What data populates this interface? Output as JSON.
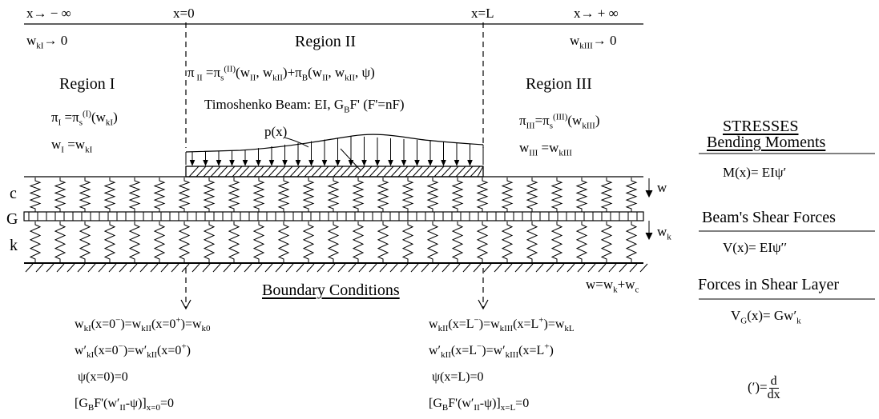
{
  "top": {
    "x_left": "x→ − ∞",
    "x0": "x=0",
    "xL": "x=L",
    "x_right": "x→ + ∞",
    "wkI_limit_base": "w",
    "wkI_limit_sub": "kI",
    "wkI_limit_tail": "→ 0",
    "wkIII_limit_base": "w",
    "wkIII_limit_sub": "kIII",
    "wkIII_limit_tail": "→ 0"
  },
  "region1": {
    "title": "Region I",
    "energy": "π_I = π_s^(I)(w_kI)",
    "disp": "w_I = w_kI"
  },
  "region2": {
    "title": "Region II",
    "energy": "π_II = π_s^(II)(w_II, w_kII) + π_B(w_II, w_kII, ψ)",
    "beam_label": "Timoshenko Beam: EI, G_B F' (F'=nF)",
    "load_label": "p(x)"
  },
  "region3": {
    "title": "Region III",
    "energy": "π_III = π_s^(III)(w_kIII)",
    "disp": "w_III = w_kIII"
  },
  "layers": {
    "c": "c",
    "G": "G",
    "k": "k",
    "w": "w",
    "wk": "w_k",
    "total": "w=w_k+w_c"
  },
  "boundary": {
    "title": "Boundary Conditions",
    "left": [
      "w_kI(x=0⁻)=w_kII(x=0⁺)=w_k0",
      "w'_kI(x=0⁻)=w'_kII(x=0⁺)",
      "ψ(x=0)=0",
      "[G_B F'(w'_II-ψ)]_x=0 =0"
    ],
    "right": [
      "w_kII(x=L⁻)=w_kIII(x=L⁺)=w_kL",
      "w'_kII(x=L⁻)=w'_kIII(x=L⁺)",
      "ψ(x=L)=0",
      "[G_B F'(w'_II-ψ)]_x=L =0"
    ]
  },
  "stresses": {
    "title": "STRESSES",
    "bending_title": "Bending Moments",
    "bending_eq": "M(x)= EIψ′",
    "shear_title": "Beam's Shear Forces",
    "shear_eq": "V(x)= EIψ′′",
    "layer_title": "Forces in Shear Layer",
    "layer_eq": "V_G(x)= Gw′_k",
    "deriv_lhs": "(′)=",
    "deriv_num": "d",
    "deriv_den": "dx"
  }
}
